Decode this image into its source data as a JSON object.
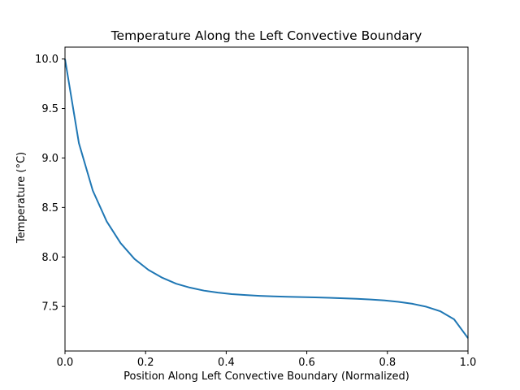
{
  "chart_data": {
    "type": "line",
    "title": "Temperature Along the Left Convective Boundary",
    "xlabel": "Position Along Left Convective Boundary (Normalized)",
    "ylabel": "Temperature (°C)",
    "xlim": [
      0.0,
      1.0
    ],
    "ylim": [
      7.05,
      10.12
    ],
    "xticks": [
      0.0,
      0.2,
      0.4,
      0.6,
      0.8,
      1.0
    ],
    "xtick_labels": [
      "0.0",
      "0.2",
      "0.4",
      "0.6",
      "0.8",
      "1.0"
    ],
    "yticks": [
      7.5,
      8.0,
      8.5,
      9.0,
      9.5,
      10.0
    ],
    "ytick_labels": [
      "7.5",
      "8.0",
      "8.5",
      "9.0",
      "9.5",
      "10.0"
    ],
    "grid": false,
    "series": [
      {
        "name": "Temperature",
        "color": "#1f77b4",
        "x": [
          0.0,
          0.0345,
          0.069,
          0.1034,
          0.1379,
          0.1724,
          0.2069,
          0.2414,
          0.2759,
          0.3103,
          0.3448,
          0.3793,
          0.4138,
          0.4483,
          0.4828,
          0.5172,
          0.5517,
          0.5862,
          0.6207,
          0.6552,
          0.6897,
          0.7241,
          0.7586,
          0.7931,
          0.8276,
          0.8621,
          0.8966,
          0.931,
          0.9655,
          1.0
        ],
        "y": [
          10.0,
          9.15,
          8.67,
          8.36,
          8.14,
          7.98,
          7.87,
          7.79,
          7.73,
          7.69,
          7.66,
          7.64,
          7.625,
          7.615,
          7.607,
          7.602,
          7.598,
          7.595,
          7.592,
          7.588,
          7.583,
          7.577,
          7.57,
          7.561,
          7.547,
          7.527,
          7.497,
          7.452,
          7.37,
          7.18
        ]
      }
    ]
  }
}
